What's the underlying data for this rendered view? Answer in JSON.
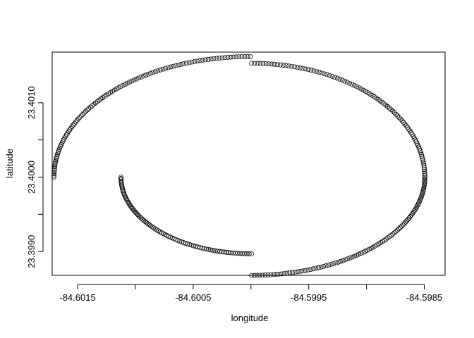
{
  "chart_data": {
    "type": "scatter",
    "title": "",
    "xlabel": "longitude",
    "ylabel": "latitude",
    "xlim": [
      -84.60172,
      -84.59832
    ],
    "ylim": [
      23.39868,
      23.40168
    ],
    "x_ticks": [
      -84.6015,
      -84.601,
      -84.6005,
      -84.6,
      -84.5995,
      -84.599,
      -84.5985
    ],
    "x_tick_labels": [
      "-84.6015",
      "",
      "-84.6005",
      "",
      "-84.5995",
      "",
      "-84.5985"
    ],
    "y_ticks": [
      23.399,
      23.3995,
      23.4,
      23.4005,
      23.401
    ],
    "y_tick_labels": [
      "23.3990",
      "",
      "23.4000",
      "",
      "23.4010"
    ],
    "grid": false,
    "marker": "open-circle",
    "series": [
      {
        "label_outer_left_upper_arc": "",
        "center": [
          -84.600005,
          23.4
        ],
        "rx": 0.0017,
        "ry": 0.00162,
        "angle_start_deg": 180,
        "angle_end_deg": 90,
        "n": 110
      },
      {
        "center": [
          -84.599995,
          23.4
        ],
        "rx": 0.0015,
        "ry": 0.00153,
        "angle_start_deg": 90,
        "angle_end_deg": 0,
        "n": 95
      },
      {
        "center": [
          -84.599995,
          23.4
        ],
        "rx": 0.0015,
        "ry": 0.00132,
        "angle_start_deg": 360,
        "angle_end_deg": 270,
        "n": 100
      },
      {
        "center": [
          -84.599995,
          23.4
        ],
        "rx": 0.00113,
        "ry": 0.00103,
        "angle_start_deg": 270,
        "angle_end_deg": 180,
        "n": 90
      }
    ]
  }
}
